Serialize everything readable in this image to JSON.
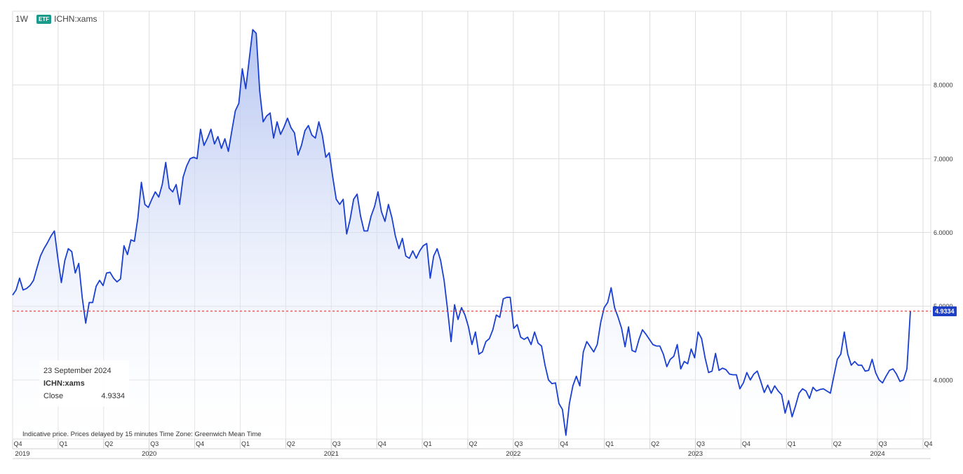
{
  "header": {
    "interval": "1W",
    "badge": "ETF",
    "symbol": "ICHN:xams"
  },
  "tooltip": {
    "date": "23 September 2024",
    "symbol": "ICHN:xams",
    "label": "Close",
    "value": "4.9334"
  },
  "footer_note": "Indicative price. Prices delayed by 15 minutes    Time Zone: Greenwich Mean Time",
  "last_price_label": "4.9334",
  "colors": {
    "line": "#1a3fd1",
    "fill_top": "#b9c8f1",
    "fill_bottom": "#ffffff",
    "ref_line": "#d62020",
    "grid": "#dddddd"
  },
  "chart_data": {
    "type": "area",
    "ylim": [
      3.2,
      9.0
    ],
    "y_ticks": [
      "8.0000",
      "7.0000",
      "6.0000",
      "5.0000",
      "4.0000"
    ],
    "y_tick_values": [
      8,
      7,
      6,
      5,
      4
    ],
    "last_value": 4.9334,
    "quarter_labels": [
      "Q4",
      "Q1",
      "Q2",
      "Q3",
      "Q4",
      "Q1",
      "Q2",
      "Q3",
      "Q4",
      "Q1",
      "Q2",
      "Q3",
      "Q4",
      "Q1",
      "Q2",
      "Q3",
      "Q4",
      "Q1",
      "Q2",
      "Q3",
      "Q4"
    ],
    "year_labels": [
      "2019",
      "2020",
      "2021",
      "2022",
      "2023",
      "2024"
    ],
    "year_label_quarter_index": [
      0,
      3,
      7,
      11,
      15,
      19
    ],
    "series": [
      {
        "values": [
          5.15,
          5.22,
          5.38,
          5.22,
          5.24,
          5.28,
          5.35,
          5.52,
          5.68,
          5.78,
          5.86,
          5.95,
          6.02,
          5.65,
          5.32,
          5.62,
          5.78,
          5.74,
          5.45,
          5.58,
          5.12,
          4.77,
          5.05,
          5.05,
          5.27,
          5.35,
          5.28,
          5.45,
          5.46,
          5.38,
          5.33,
          5.37,
          5.82,
          5.7,
          5.9,
          5.88,
          6.2,
          6.68,
          6.38,
          6.34,
          6.45,
          6.55,
          6.48,
          6.65,
          6.95,
          6.6,
          6.55,
          6.65,
          6.38,
          6.75,
          6.9,
          7.0,
          7.02,
          7.0,
          7.4,
          7.18,
          7.28,
          7.4,
          7.2,
          7.3,
          7.14,
          7.27,
          7.1,
          7.38,
          7.65,
          7.75,
          8.22,
          7.95,
          8.35,
          8.75,
          8.7,
          7.92,
          7.5,
          7.58,
          7.62,
          7.28,
          7.5,
          7.33,
          7.43,
          7.55,
          7.42,
          7.35,
          7.05,
          7.18,
          7.38,
          7.45,
          7.32,
          7.28,
          7.5,
          7.32,
          7.02,
          7.08,
          6.75,
          6.45,
          6.38,
          6.45,
          5.98,
          6.18,
          6.45,
          6.52,
          6.22,
          6.02,
          6.02,
          6.22,
          6.35,
          6.55,
          6.28,
          6.15,
          6.38,
          6.2,
          5.95,
          5.78,
          5.92,
          5.68,
          5.65,
          5.75,
          5.65,
          5.75,
          5.82,
          5.85,
          5.38,
          5.68,
          5.78,
          5.62,
          5.35,
          4.95,
          4.52,
          5.02,
          4.82,
          4.98,
          4.88,
          4.72,
          4.48,
          4.65,
          4.35,
          4.38,
          4.52,
          4.56,
          4.68,
          4.88,
          4.85,
          5.1,
          5.12,
          5.12,
          4.7,
          4.75,
          4.58,
          4.55,
          4.58,
          4.48,
          4.65,
          4.5,
          4.46,
          4.2,
          4.0,
          3.95,
          3.96,
          3.68,
          3.6,
          3.25,
          3.68,
          3.92,
          4.05,
          3.92,
          4.38,
          4.52,
          4.45,
          4.38,
          4.48,
          4.78,
          4.98,
          5.05,
          5.25,
          4.98,
          4.85,
          4.7,
          4.45,
          4.72,
          4.4,
          4.38,
          4.55,
          4.68,
          4.62,
          4.55,
          4.48,
          4.46,
          4.46,
          4.35,
          4.18,
          4.28,
          4.32,
          4.48,
          4.15,
          4.25,
          4.22,
          4.42,
          4.3,
          4.65,
          4.56,
          4.3,
          4.1,
          4.12,
          4.36,
          4.13,
          4.16,
          4.14,
          4.08,
          4.07,
          4.07,
          3.88,
          3.96,
          4.1,
          4.0,
          4.08,
          4.12,
          3.98,
          3.83,
          3.93,
          3.82,
          3.92,
          3.85,
          3.8,
          3.55,
          3.72,
          3.5,
          3.65,
          3.82,
          3.88,
          3.85,
          3.75,
          3.9,
          3.85,
          3.87,
          3.88,
          3.85,
          3.82,
          4.05,
          4.28,
          4.35,
          4.65,
          4.35,
          4.2,
          4.25,
          4.2,
          4.2,
          4.12,
          4.13,
          4.28,
          4.1,
          4.0,
          3.96,
          4.05,
          4.13,
          4.15,
          4.08,
          3.98,
          4.0,
          4.15,
          4.9334
        ]
      }
    ]
  }
}
